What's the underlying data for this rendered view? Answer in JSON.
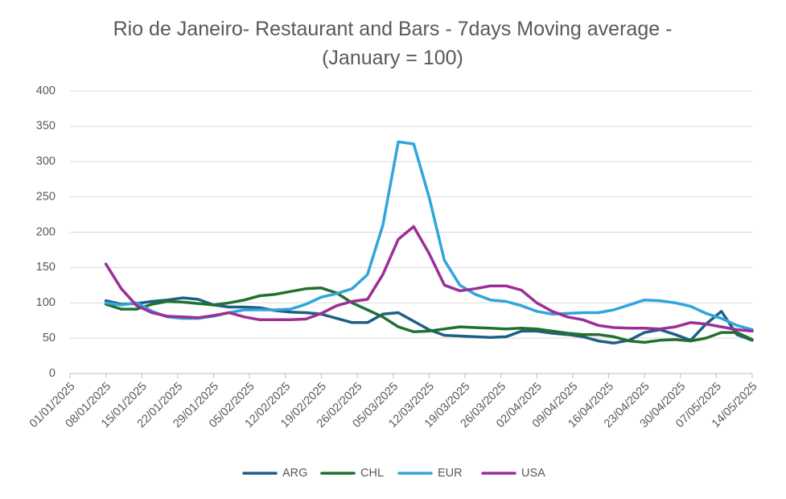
{
  "chart_data": {
    "type": "line",
    "title": "Rio de Janeiro- Restaurant and Bars - 7days Moving average - (January = 100)",
    "x": [
      "08/01/2025",
      "11/01/2025",
      "14/01/2025",
      "17/01/2025",
      "20/01/2025",
      "23/01/2025",
      "26/01/2025",
      "29/01/2025",
      "01/02/2025",
      "04/02/2025",
      "07/02/2025",
      "10/02/2025",
      "13/02/2025",
      "16/02/2025",
      "19/02/2025",
      "22/02/2025",
      "25/02/2025",
      "28/02/2025",
      "03/03/2025",
      "06/03/2025",
      "09/03/2025",
      "12/03/2025",
      "15/03/2025",
      "18/03/2025",
      "21/03/2025",
      "24/03/2025",
      "27/03/2025",
      "30/03/2025",
      "02/04/2025",
      "05/04/2025",
      "08/04/2025",
      "11/04/2025",
      "14/04/2025",
      "17/04/2025",
      "20/04/2025",
      "23/04/2025",
      "26/04/2025",
      "29/04/2025",
      "02/05/2025",
      "05/05/2025",
      "08/05/2025",
      "11/05/2025",
      "14/05/2025"
    ],
    "series": [
      {
        "name": "ARG",
        "color": "#1f5f85",
        "values": [
          103,
          98,
          99,
          102,
          104,
          107,
          105,
          97,
          94,
          94,
          93,
          89,
          87,
          86,
          84,
          78,
          72,
          72,
          84,
          86,
          74,
          62,
          54,
          53,
          52,
          51,
          52,
          60,
          60,
          57,
          55,
          52,
          46,
          43,
          47,
          58,
          62,
          55,
          47,
          70,
          88,
          55,
          47
        ]
      },
      {
        "name": "CHL",
        "color": "#22702f",
        "values": [
          98,
          91,
          91,
          98,
          102,
          101,
          99,
          97,
          100,
          104,
          110,
          112,
          116,
          120,
          121,
          114,
          100,
          90,
          80,
          66,
          59,
          60,
          63,
          66,
          65,
          64,
          63,
          64,
          63,
          60,
          57,
          55,
          55,
          52,
          46,
          44,
          47,
          48,
          46,
          50,
          58,
          58,
          48
        ]
      },
      {
        "name": "EUR",
        "color": "#2fa6da",
        "values": [
          100,
          97,
          100,
          88,
          80,
          78,
          78,
          81,
          86,
          90,
          90,
          90,
          91,
          98,
          108,
          113,
          120,
          140,
          210,
          328,
          325,
          250,
          160,
          125,
          112,
          104,
          102,
          96,
          88,
          84,
          85,
          86,
          86,
          90,
          97,
          104,
          103,
          100,
          95,
          85,
          78,
          68,
          62
        ]
      },
      {
        "name": "USA",
        "color": "#9b2f97",
        "values": [
          155,
          120,
          96,
          86,
          81,
          80,
          79,
          82,
          86,
          80,
          76,
          76,
          76,
          77,
          85,
          96,
          102,
          105,
          140,
          190,
          208,
          170,
          125,
          117,
          120,
          124,
          124,
          118,
          100,
          88,
          80,
          76,
          68,
          65,
          64,
          64,
          63,
          66,
          72,
          70,
          66,
          62,
          60
        ]
      }
    ],
    "xlim": [
      "01/01/2025",
      "14/05/2025"
    ],
    "xticks": [
      "01/01/2025",
      "08/01/2025",
      "15/01/2025",
      "22/01/2025",
      "29/01/2025",
      "05/02/2025",
      "12/02/2025",
      "19/02/2025",
      "26/02/2025",
      "05/03/2025",
      "12/03/2025",
      "19/03/2025",
      "26/03/2025",
      "02/04/2025",
      "09/04/2025",
      "16/04/2025",
      "23/04/2025",
      "30/04/2025",
      "07/05/2025",
      "14/05/2025"
    ],
    "ylim": [
      0,
      400
    ],
    "yticks": [
      0,
      50,
      100,
      150,
      200,
      250,
      300,
      350,
      400
    ],
    "grid": true,
    "legend": "bottom"
  }
}
